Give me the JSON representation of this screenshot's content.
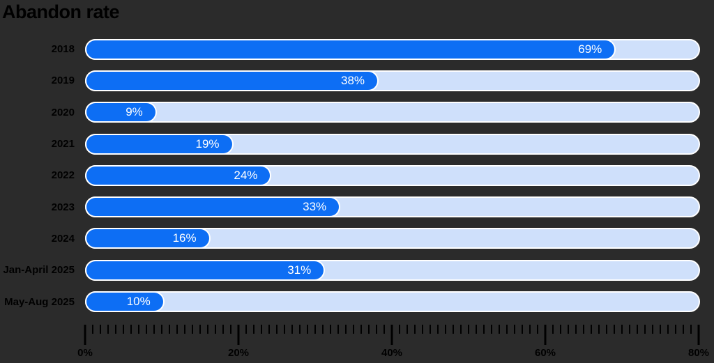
{
  "title": "Abandon rate",
  "colors": {
    "background": "#2b2b2b",
    "bar_fill": "#0d6ef4",
    "bar_track": "#cfe0fb",
    "bar_outline": "#ffffff",
    "text": "#000000",
    "value_text": "#ffffff"
  },
  "chart_data": {
    "type": "bar",
    "orientation": "horizontal",
    "title": "Abandon rate",
    "categories": [
      "2018",
      "2019",
      "2020",
      "2021",
      "2022",
      "2023",
      "2024",
      "Jan-April 2025",
      "May-Aug 2025"
    ],
    "values": [
      69,
      38,
      9,
      19,
      24,
      33,
      16,
      31,
      10
    ],
    "value_labels": [
      "69%",
      "38%",
      "9%",
      "19%",
      "24%",
      "33%",
      "16%",
      "31%",
      "10%"
    ],
    "xlabel": "",
    "ylabel": "",
    "xlim": [
      0,
      80
    ],
    "x_ticks": [
      "0%",
      "20%",
      "40%",
      "60%",
      "80%"
    ],
    "x_tick_values": [
      0,
      20,
      40,
      60,
      80
    ],
    "minor_tick_step": 1,
    "grid": false,
    "legend": false
  }
}
